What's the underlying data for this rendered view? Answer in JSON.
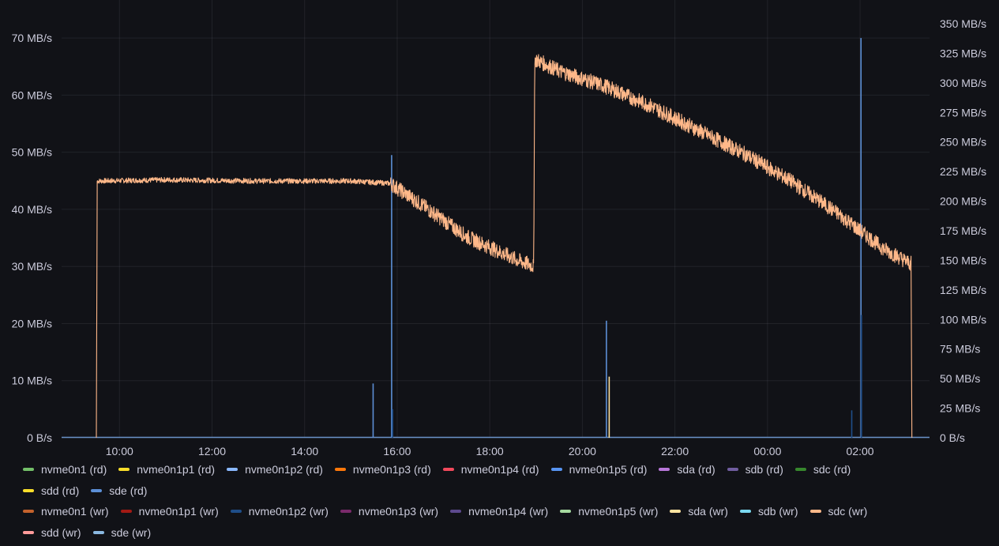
{
  "chart_data": {
    "type": "line",
    "x_ticks": [
      "10:00",
      "12:00",
      "14:00",
      "16:00",
      "18:00",
      "20:00",
      "22:00",
      "00:00",
      "02:00"
    ],
    "x_tick_hours": [
      10,
      12,
      14,
      16,
      18,
      20,
      22,
      24,
      26
    ],
    "x_range_hours": [
      8.75,
      27.5
    ],
    "left_axis": {
      "ticks": [
        "0 B/s",
        "10 MB/s",
        "20 MB/s",
        "30 MB/s",
        "40 MB/s",
        "50 MB/s",
        "60 MB/s",
        "70 MB/s"
      ],
      "min": 0,
      "max": 75,
      "unit": "MB/s"
    },
    "right_axis": {
      "ticks": [
        "0 B/s",
        "25 MB/s",
        "50 MB/s",
        "75 MB/s",
        "100 MB/s",
        "125 MB/s",
        "150 MB/s",
        "175 MB/s",
        "200 MB/s",
        "225 MB/s",
        "250 MB/s",
        "275 MB/s",
        "300 MB/s",
        "325 MB/s",
        "350 MB/s"
      ],
      "min": 0,
      "max": 362,
      "unit": "MB/s"
    },
    "grid": true,
    "legend_placement": "bottom",
    "series": [
      {
        "name": "nvme0n1 (rd)",
        "color": "#73bf69",
        "points": []
      },
      {
        "name": "nvme0n1p1 (rd)",
        "color": "#fade2a",
        "points": []
      },
      {
        "name": "nvme0n1p2 (rd)",
        "color": "#8ab8ff",
        "points": []
      },
      {
        "name": "nvme0n1p3 (rd)",
        "color": "#ff780a",
        "points": []
      },
      {
        "name": "nvme0n1p4 (rd)",
        "color": "#f2495c",
        "points": []
      },
      {
        "name": "nvme0n1p5 (rd)",
        "color": "#5794f2",
        "points": []
      },
      {
        "name": "sda (rd)",
        "color": "#b877d9",
        "points": []
      },
      {
        "name": "sdb (rd)",
        "color": "#705da0",
        "points": []
      },
      {
        "name": "sdc (rd)",
        "color": "#37872d",
        "points": []
      },
      {
        "name": "sdd (rd)",
        "color": "#fade2a",
        "points": []
      },
      {
        "name": "sde (rd)",
        "color": "#5c8fd6",
        "axis": "left",
        "spikes": [
          [
            15.48,
            9.5
          ],
          [
            15.88,
            49.5
          ],
          [
            20.52,
            20.5
          ],
          [
            26.02,
            70
          ]
        ]
      },
      {
        "name": "nvme0n1 (wr)",
        "color": "#c4622c",
        "points": []
      },
      {
        "name": "nvme0n1p1 (wr)",
        "color": "#a31a14",
        "points": []
      },
      {
        "name": "nvme0n1p2 (wr)",
        "color": "#1f4e89",
        "axis": "left",
        "spikes": [
          [
            15.9,
            5.0
          ],
          [
            25.82,
            4.8
          ],
          [
            26.03,
            21.5
          ]
        ]
      },
      {
        "name": "nvme0n1p3 (wr)",
        "color": "#7a2a6b",
        "points": []
      },
      {
        "name": "nvme0n1p4 (wr)",
        "color": "#5d4a8e",
        "points": []
      },
      {
        "name": "nvme0n1p5 (wr)",
        "color": "#a6d9a0",
        "points": []
      },
      {
        "name": "sda (wr)",
        "color": "#ffe3a0",
        "axis": "left",
        "spikes": [
          [
            20.58,
            10.7
          ]
        ]
      },
      {
        "name": "sdb (wr)",
        "color": "#7ad8f0",
        "points": []
      },
      {
        "name": "sdc (wr)",
        "color": "#ffb889",
        "axis": "right",
        "band_width": 10,
        "points": [
          [
            9.5,
            0
          ],
          [
            9.52,
            217
          ],
          [
            11,
            218
          ],
          [
            13,
            217
          ],
          [
            15,
            217
          ],
          [
            15.85,
            215
          ],
          [
            16.6,
            195
          ],
          [
            17.5,
            170
          ],
          [
            18.6,
            150
          ],
          [
            18.95,
            145
          ],
          [
            18.97,
            320
          ],
          [
            19.5,
            310
          ],
          [
            20.5,
            297
          ],
          [
            21.5,
            280
          ],
          [
            22.5,
            260
          ],
          [
            23.5,
            240
          ],
          [
            24.5,
            217
          ],
          [
            25.5,
            190
          ],
          [
            26.0,
            175
          ],
          [
            26.5,
            160
          ],
          [
            27.1,
            147
          ],
          [
            27.12,
            0
          ]
        ]
      },
      {
        "name": "sdd (wr)",
        "color": "#ff9b9b",
        "points": []
      },
      {
        "name": "sde (wr)",
        "color": "#8ab8e0",
        "points": []
      }
    ]
  },
  "legend_rows": [
    [
      0,
      1,
      2,
      3,
      4,
      5,
      6,
      7,
      8
    ],
    [
      9,
      10
    ],
    [
      11,
      12,
      13,
      14,
      15,
      16,
      17,
      18,
      19
    ],
    [
      20,
      21
    ]
  ]
}
